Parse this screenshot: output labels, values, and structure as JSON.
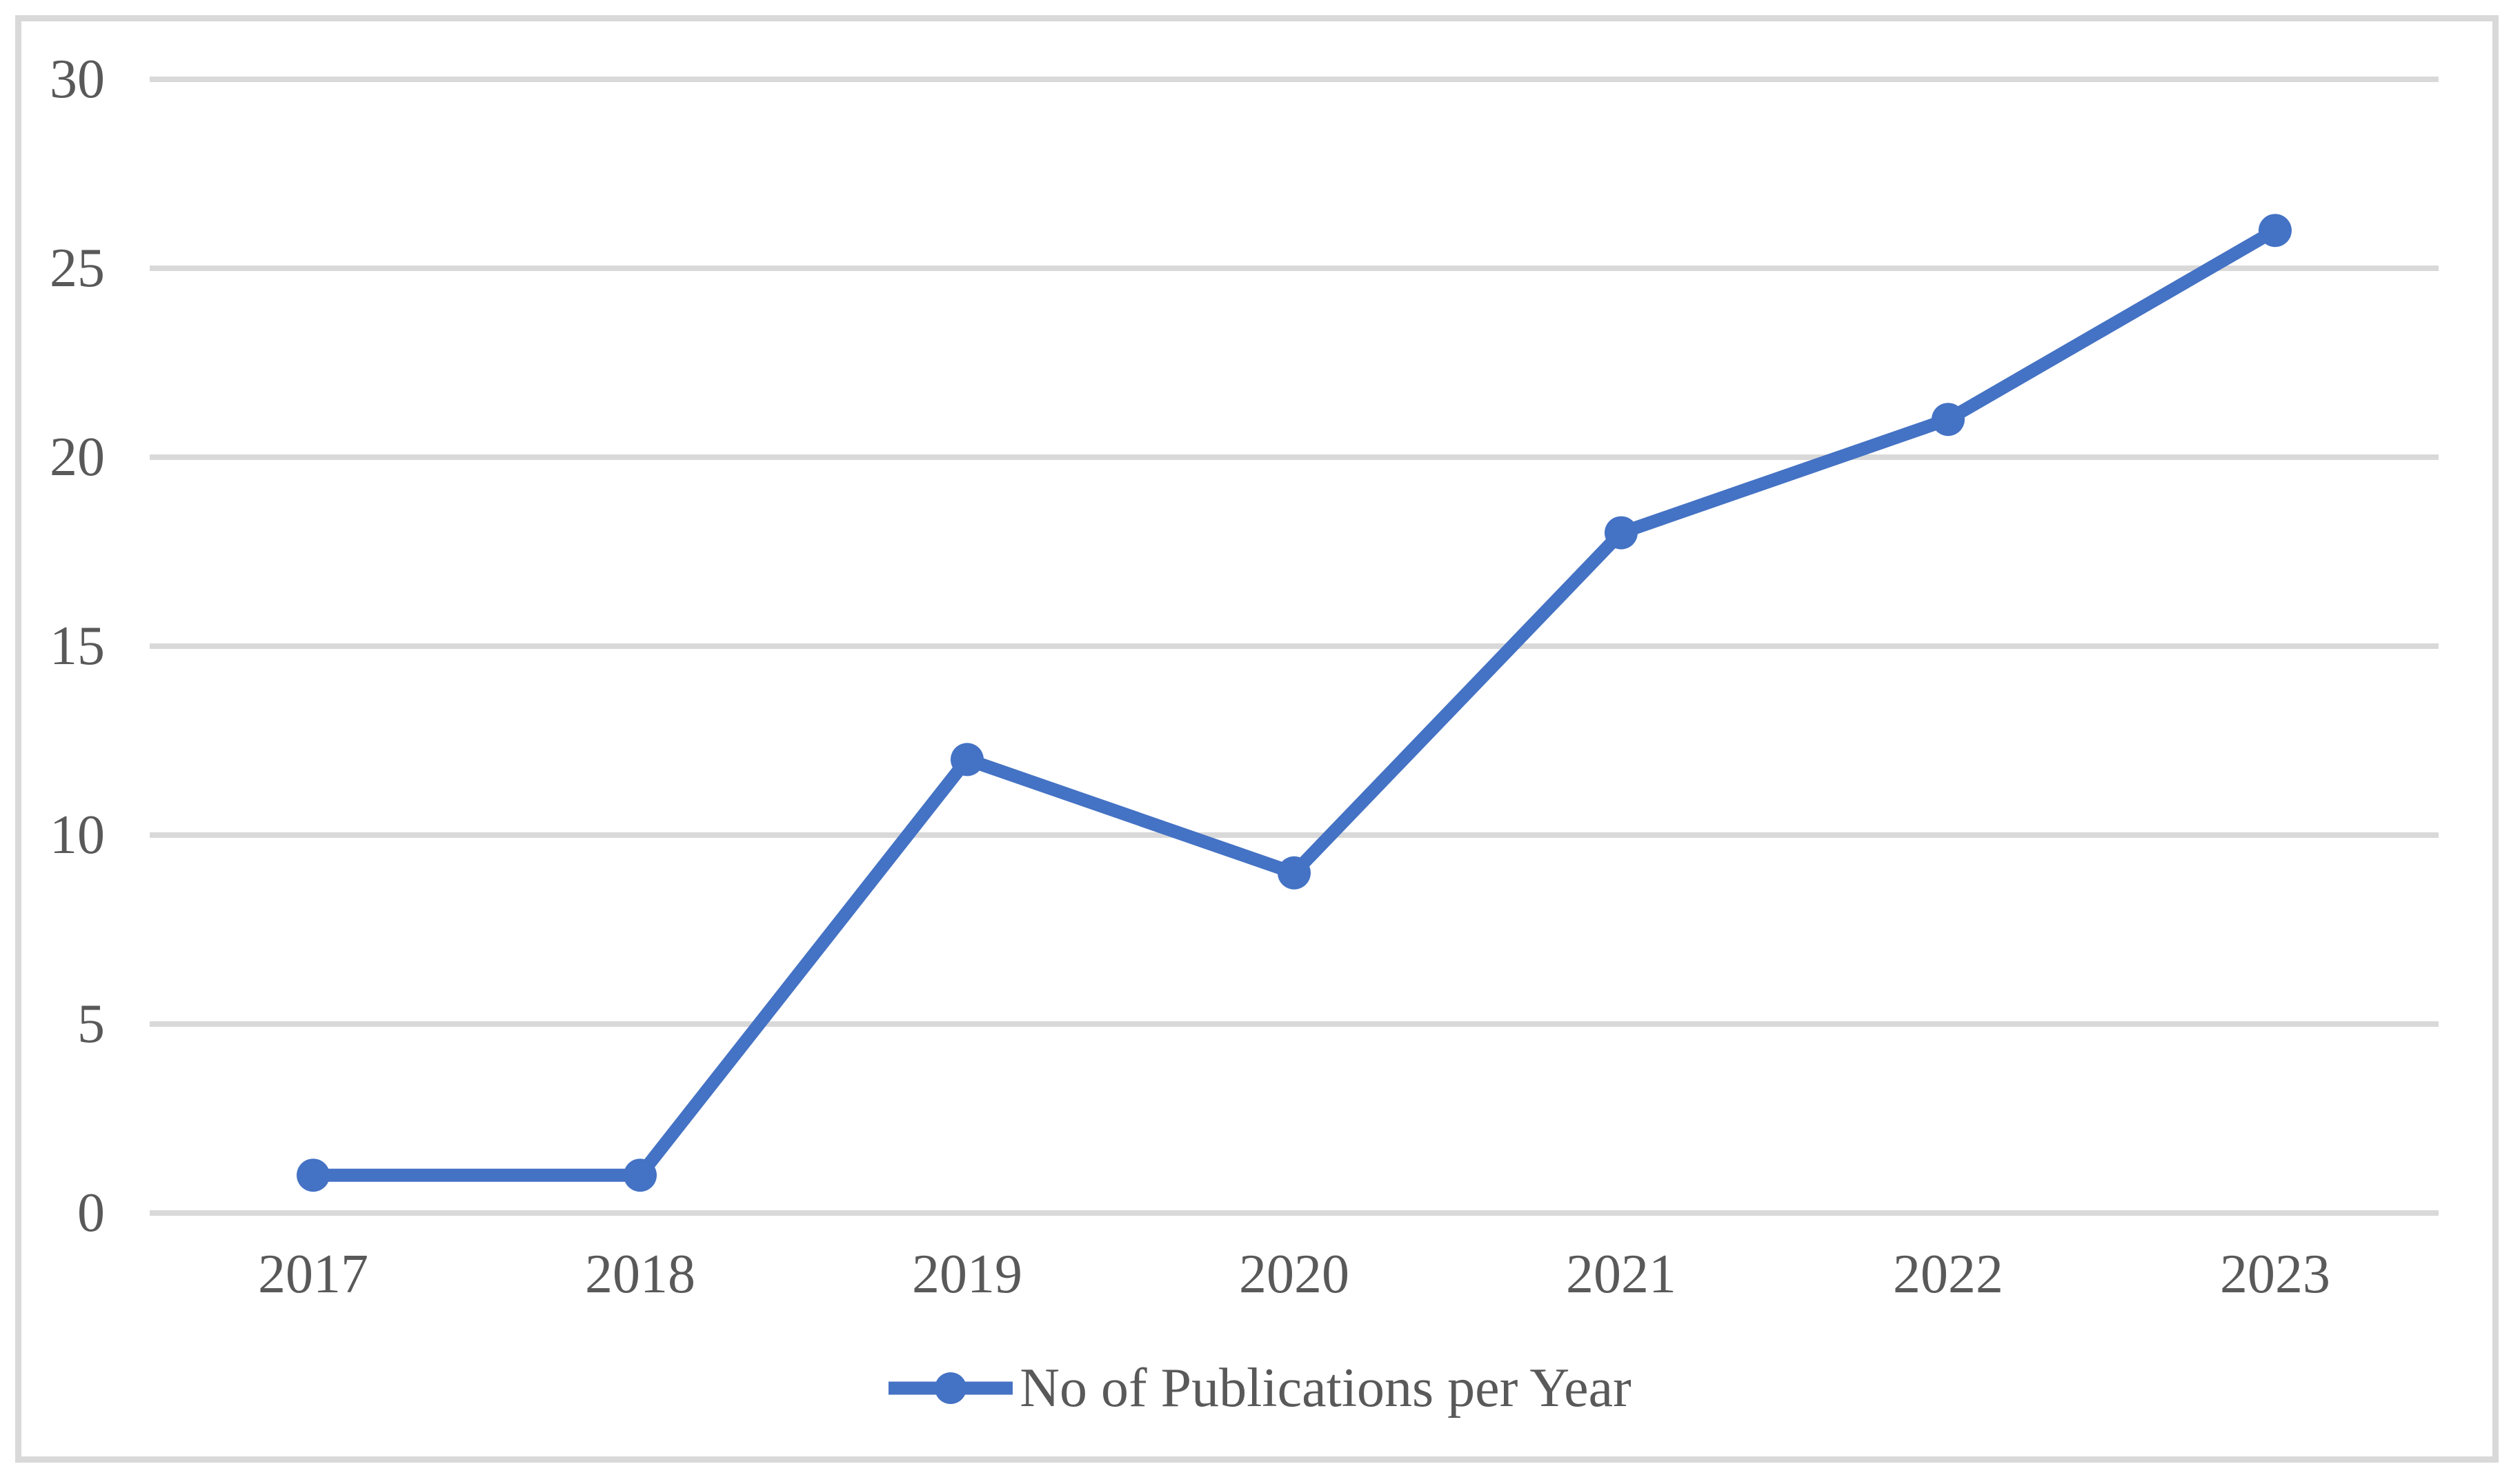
{
  "chart_data": {
    "type": "line",
    "title": "",
    "categories": [
      "2017",
      "2018",
      "2019",
      "2020",
      "2021",
      "2022",
      "2023"
    ],
    "series": [
      {
        "name": "No of Publications per Year",
        "values": [
          1,
          1,
          12,
          9,
          18,
          21,
          26
        ]
      }
    ],
    "xlabel": "",
    "ylabel": "",
    "ylim": [
      0,
      30
    ],
    "yticks": [
      0,
      5,
      10,
      15,
      20,
      25,
      30
    ],
    "grid": "horizontal-only",
    "legend_position": "bottom-center",
    "legend_label": "No of Publications per Year"
  },
  "colors": {
    "series_line": "#4472C4",
    "marker_fill": "#4472C4",
    "gridline": "#D9D9D9",
    "frame_border": "#D9D9D9",
    "axis_text": "#595959",
    "background": "#FFFFFF"
  }
}
